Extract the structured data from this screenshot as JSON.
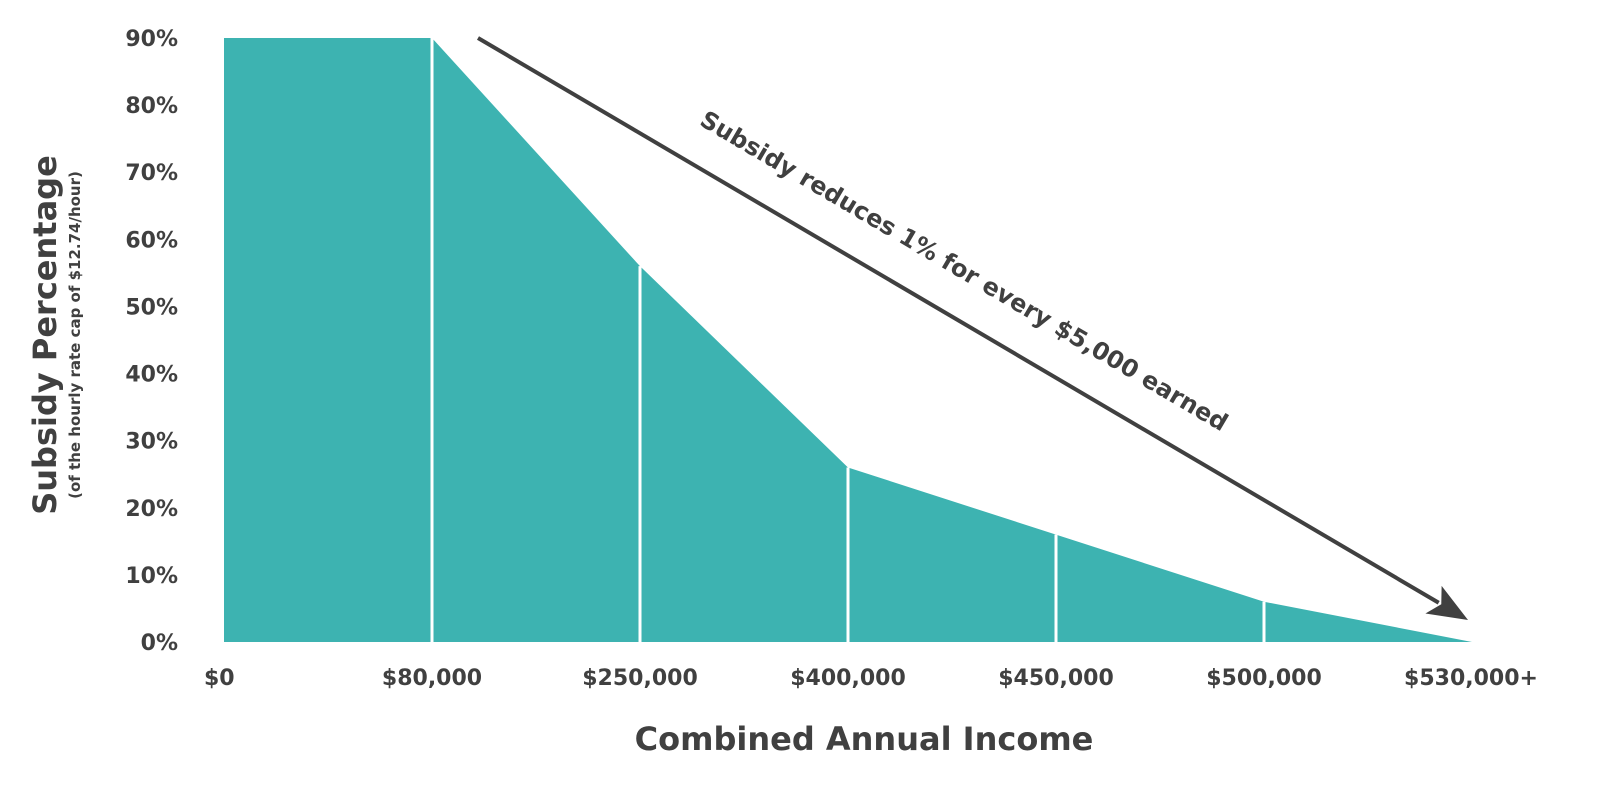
{
  "chart_data": {
    "type": "area",
    "x": [
      "$0",
      "$80,000",
      "$250,000",
      "$400,000",
      "$450,000",
      "$500,000",
      "$530,000+"
    ],
    "values": [
      90,
      90,
      56,
      26,
      16,
      6,
      0
    ],
    "ylim": [
      0,
      90
    ],
    "yticks": [
      "0%",
      "10%",
      "20%",
      "30%",
      "40%",
      "50%",
      "60%",
      "70%",
      "80%",
      "90%"
    ],
    "xlabel": "Combined Annual Income",
    "ylabel": "Subsidy Percentage",
    "ylabel_sub": "(of the hourly rate cap of $12.74/hour)",
    "annotation": "Subsidy reduces 1% for every $5,000 earned",
    "grid": false,
    "colors": {
      "fill": "#3db3b1",
      "divider": "#ffffff",
      "text": "#404040",
      "arrow": "#404040"
    }
  }
}
